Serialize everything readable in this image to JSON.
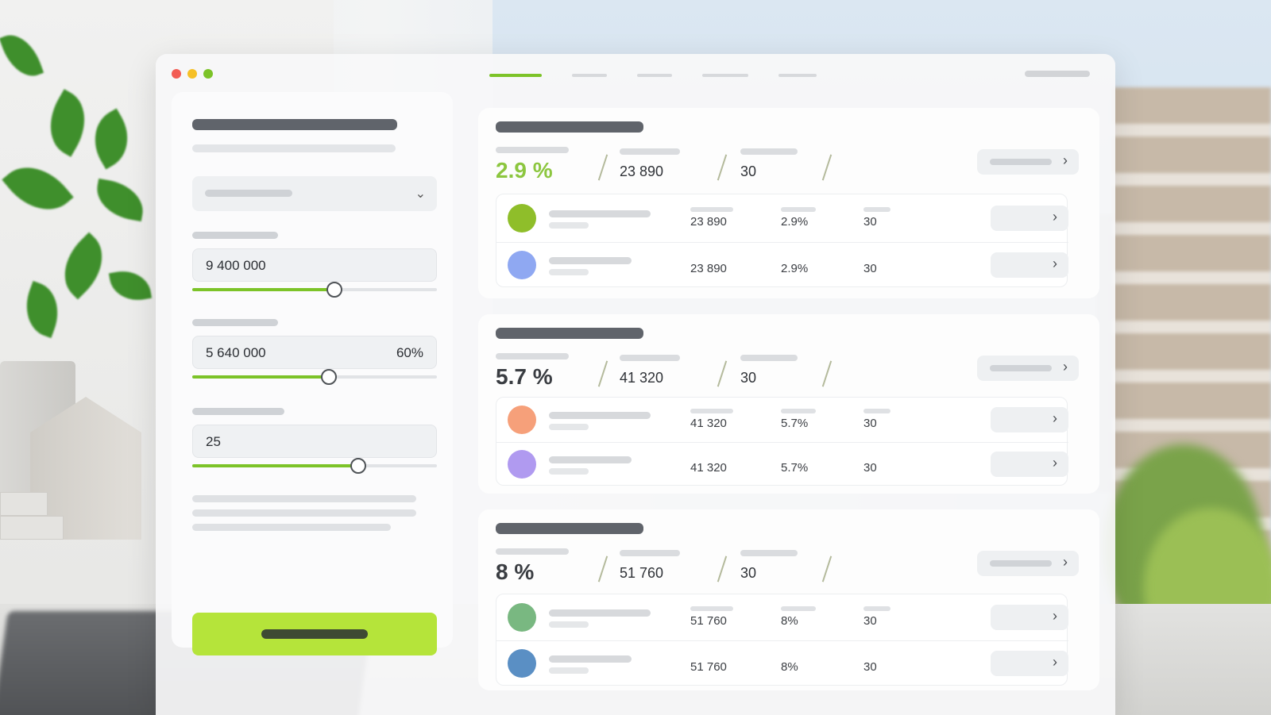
{
  "window": {
    "dots": [
      "#f25c54",
      "#f6c026",
      "#7cc328"
    ]
  },
  "inputs": {
    "amount_value": "9 400 000",
    "down_payment_value": "5 640 000",
    "down_payment_percent": "60%",
    "term_value": "25",
    "amount_slider_level": 0.58,
    "down_payment_slider_level": 0.56,
    "term_slider_level": 0.68
  },
  "offers": [
    {
      "rate": "2.9 %",
      "payment": "23 890",
      "term": "30",
      "rate_color": "#8cc63f",
      "rows": [
        {
          "color": "#8fbe2a",
          "payment": "23 890",
          "rate": "2.9%",
          "term": "30"
        },
        {
          "color": "#8fa8f2",
          "payment": "23 890",
          "rate": "2.9%",
          "term": "30"
        }
      ]
    },
    {
      "rate": "5.7 %",
      "payment": "41 320",
      "term": "30",
      "rate_color": "#3a3d42",
      "rows": [
        {
          "color": "#f6a07a",
          "payment": "41 320",
          "rate": "5.7%",
          "term": "30"
        },
        {
          "color": "#b09af0",
          "payment": "41 320",
          "rate": "5.7%",
          "term": "30"
        }
      ]
    },
    {
      "rate": "8 %",
      "payment": "51 760",
      "term": "30",
      "rate_color": "#3a3d42",
      "rows": [
        {
          "color": "#79b881",
          "payment": "51 760",
          "rate": "8%",
          "term": "30"
        },
        {
          "color": "#5a8fc4",
          "payment": "51 760",
          "rate": "8%",
          "term": "30"
        }
      ]
    }
  ],
  "icons": {
    "dropdown": "chevron-down-icon",
    "row_action": "chevron-right-icon"
  },
  "accent": "#b5e43a"
}
